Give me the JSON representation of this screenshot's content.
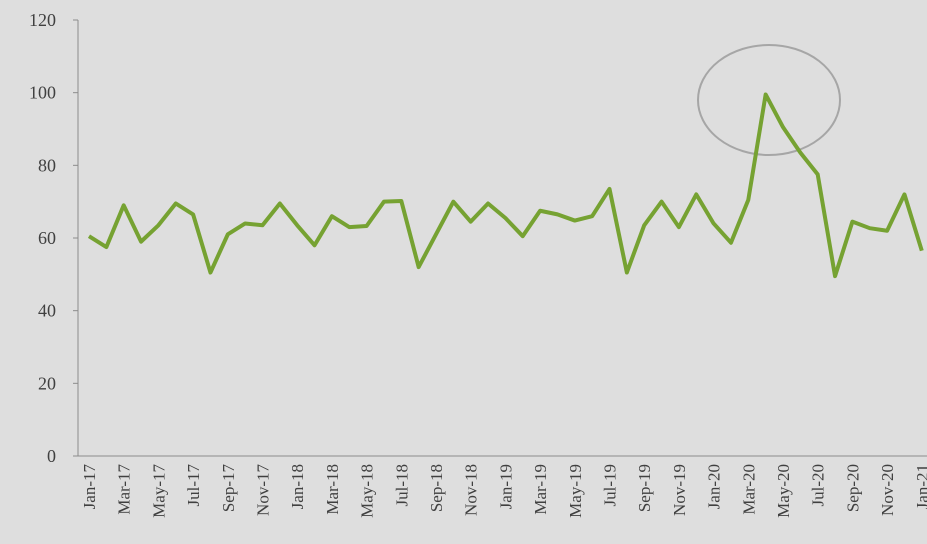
{
  "chart_data": {
    "type": "line",
    "categories": [
      "Jan-17",
      null,
      "Mar-17",
      null,
      "May-17",
      null,
      "Jul-17",
      null,
      "Sep-17",
      null,
      "Nov-17",
      null,
      "Jan-18",
      null,
      "Mar-18",
      null,
      "May-18",
      null,
      "Jul-18",
      null,
      "Sep-18",
      null,
      "Nov-18",
      null,
      "Jan-19",
      null,
      "Mar-19",
      null,
      "May-19",
      null,
      "Jul-19",
      null,
      "Sep-19",
      null,
      "Nov-19",
      null,
      "Jan-20",
      null,
      "Mar-20",
      null,
      "May-20",
      null,
      "Jul-20",
      null,
      "Sep-20",
      null,
      "Nov-20",
      null,
      "Jan-21"
    ],
    "series": [
      {
        "color": "#76a232",
        "values": [
          60.5,
          57.5,
          69,
          59,
          63.5,
          69.5,
          66.5,
          50.5,
          61,
          64,
          63.5,
          69.5,
          63.5,
          58,
          66,
          63,
          63.3,
          70,
          70.2,
          52,
          61,
          70,
          64.5,
          69.5,
          65.5,
          60.5,
          67.5,
          66.5,
          64.8,
          66,
          73.5,
          50.5,
          63.5,
          70,
          63,
          72,
          64,
          58.7,
          70.5,
          99.5,
          90.5,
          83.5,
          77.5,
          49.5,
          64.5,
          62.7,
          62,
          72,
          56.5
        ]
      }
    ],
    "ylim": [
      0,
      120
    ],
    "yticks": [
      0,
      20,
      40,
      60,
      80,
      100,
      120
    ],
    "grid": false
  }
}
